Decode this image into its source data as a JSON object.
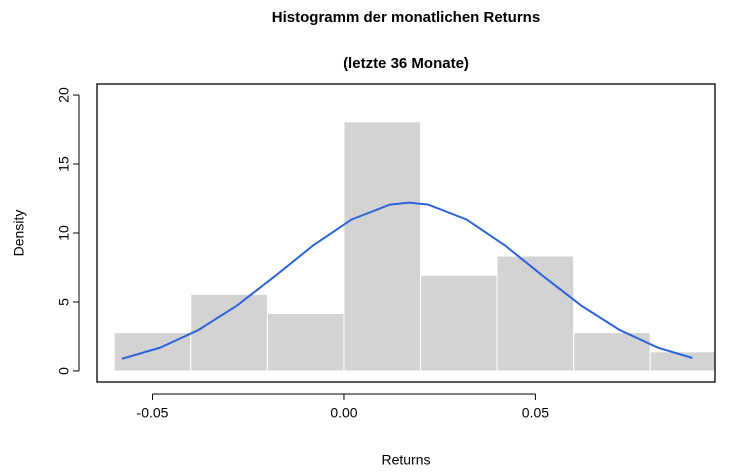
{
  "chart_data": {
    "type": "histogram",
    "title": "Histogramm der monatlichen Returns",
    "subtitle": "(letzte 36 Monate)",
    "x_label": "Returns",
    "y_label": "Density",
    "bins": [
      -0.06,
      -0.04,
      -0.02,
      0.0,
      0.02,
      0.04,
      0.06,
      0.08,
      0.1
    ],
    "values": [
      2.78,
      5.56,
      4.17,
      18.06,
      6.94,
      8.33,
      2.78,
      1.39
    ],
    "color": "#d3d3d3",
    "density_curve": {
      "color": "#2b63d9",
      "x": [
        -0.058,
        -0.048,
        -0.038,
        -0.028,
        -0.018,
        -0.008,
        0.002,
        0.012,
        0.017,
        0.022,
        0.032,
        0.042,
        0.052,
        0.062,
        0.072,
        0.082,
        0.091
      ],
      "y": [
        0.88,
        1.69,
        2.97,
        4.73,
        6.88,
        9.11,
        10.98,
        12.06,
        12.2,
        12.06,
        10.98,
        9.11,
        6.88,
        4.73,
        2.97,
        1.69,
        0.94
      ]
    },
    "xlim": [
      -0.0645,
      0.0969
    ],
    "ylim": [
      -0.8,
      20.8
    ],
    "xticks": [
      {
        "value": -0.05,
        "label": "-0.05"
      },
      {
        "value": 0.0,
        "label": "0.00"
      },
      {
        "value": 0.05,
        "label": "0.05"
      }
    ],
    "yticks": [
      0,
      5,
      10,
      15,
      20
    ]
  }
}
